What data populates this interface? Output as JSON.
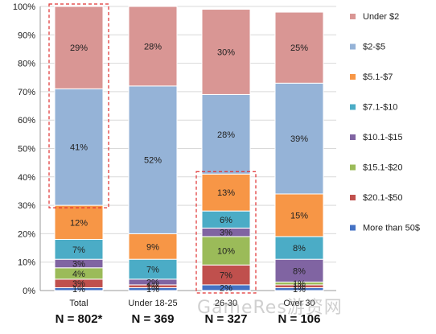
{
  "chart_data": {
    "type": "bar",
    "stacked": true,
    "categories": [
      "Total",
      "Under 18-25",
      "26-30",
      "Over 30"
    ],
    "category_notes": [
      "N = 802*",
      "N = 369",
      "N = 327",
      "N = 106"
    ],
    "ylim": [
      0,
      100
    ],
    "yticks": [
      "0%",
      "10%",
      "20%",
      "30%",
      "40%",
      "50%",
      "60%",
      "70%",
      "80%",
      "90%",
      "100%"
    ],
    "legend_position": "right",
    "series": [
      {
        "name": "More than 50$",
        "color": "#4472c4",
        "values": [
          1,
          1,
          2,
          1
        ],
        "labels": [
          "1%",
          "1%",
          "2%",
          "1%"
        ]
      },
      {
        "name": "$20.1-$50",
        "color": "#c0504d",
        "values": [
          3,
          1,
          7,
          1
        ],
        "labels": [
          "3%",
          "1%",
          "7%",
          "1%"
        ]
      },
      {
        "name": "$15.1-$20",
        "color": "#9bbb59",
        "values": [
          4,
          0,
          10,
          1
        ],
        "labels": [
          "4%",
          "",
          "10%",
          "1%"
        ]
      },
      {
        "name": "$10.1-$15",
        "color": "#8064a2",
        "values": [
          3,
          2,
          3,
          8
        ],
        "labels": [
          "3%",
          "2%",
          "3%",
          "8%"
        ]
      },
      {
        "name": "$7.1-$10",
        "color": "#4bacc6",
        "values": [
          7,
          7,
          6,
          8
        ],
        "labels": [
          "7%",
          "7%",
          "6%",
          "8%"
        ]
      },
      {
        "name": "$5.1-$7",
        "color": "#f79646",
        "values": [
          12,
          9,
          13,
          15
        ],
        "labels": [
          "12%",
          "9%",
          "13%",
          "15%"
        ]
      },
      {
        "name": "$2-$5",
        "color": "#95b3d7",
        "values": [
          41,
          52,
          28,
          39
        ],
        "labels": [
          "41%",
          "52%",
          "28%",
          "39%"
        ]
      },
      {
        "name": "Under $2",
        "color": "#d99694",
        "values": [
          29,
          28,
          30,
          25
        ],
        "labels": [
          "29%",
          "28%",
          "30%",
          "25%"
        ]
      }
    ],
    "legend_order": [
      "Under $2",
      "$2-$5",
      "$5.1-$7",
      "$7.1-$10",
      "$10.1-$15",
      "$15.1-$20",
      "$20.1-$50",
      "More than 50$"
    ],
    "highlights": [
      {
        "category": "Total",
        "series": [
          "$2-$5",
          "Under $2"
        ]
      },
      {
        "category": "26-30",
        "series": [
          "More than 50$",
          "$20.1-$50",
          "$15.1-$20",
          "$10.1-$15",
          "$7.1-$10",
          "$5.1-$7"
        ]
      }
    ]
  },
  "watermark": "GameRes游资网"
}
